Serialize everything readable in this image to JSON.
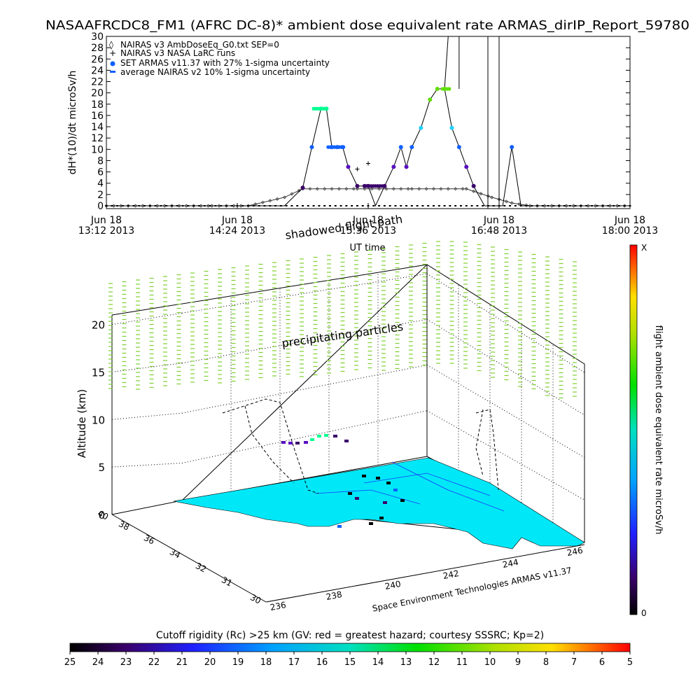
{
  "chart_data": [
    {
      "type": "line",
      "title": "NASAAFRCDC8_FM1 (AFRC DC-8)* ambient dose equivalent rate ARMAS_dirIP_Report_59780",
      "xlabel": "UT time",
      "ylabel": "dH*(10)/dt microSv/h",
      "ylim": [
        0,
        30
      ],
      "yticks": [
        "0",
        "2",
        "4",
        "6",
        "8",
        "10",
        "12",
        "14",
        "16",
        "18",
        "20",
        "22",
        "24",
        "26",
        "28",
        "30"
      ],
      "xtick_labels": [
        {
          "date": "Jun 18",
          "time": "13:12 2013"
        },
        {
          "date": "Jun 18",
          "time": "14:24 2013"
        },
        {
          "date": "Jun 18",
          "time": "15:36 2013"
        },
        {
          "date": "Jun 18",
          "time": "16:48 2013"
        },
        {
          "date": "Jun 18",
          "time": "18:00 2013"
        }
      ],
      "legend": [
        "NAIRAS v3 AmbDoseEq_G0.txt SEP=0",
        "NAIRAS v3 NASA LaRC runs",
        "SET ARMAS v11.37 with 27% 1-sigma uncertainty",
        "average NAIRAS v2 10% 1-sigma uncertainty"
      ],
      "annotations": [
        "shadowed flight path"
      ],
      "series": [
        {
          "name": "SET ARMAS v11.37 with 27% 1-sigma uncertainty",
          "x": [
            "13:12",
            "14:10",
            "14:50",
            "15:00",
            "15:05",
            "15:10",
            "15:13",
            "15:16",
            "15:19",
            "15:22",
            "15:25",
            "15:30",
            "15:34",
            "15:36",
            "15:40",
            "15:45",
            "15:50",
            "15:54",
            "15:57",
            "16:00",
            "16:05",
            "16:10",
            "16:14",
            "16:18",
            "16:22",
            "16:26",
            "16:30",
            "16:34",
            "16:40",
            "16:44",
            "16:50",
            "16:55",
            "17:00",
            "17:05",
            "17:20",
            "18:00"
          ],
          "y": [
            0,
            0,
            0,
            3.2,
            10.4,
            17.2,
            17.2,
            10.4,
            10.4,
            10.4,
            6.9,
            3.5,
            3.5,
            3.5,
            0,
            3.5,
            6.9,
            10.4,
            6.9,
            10.4,
            13.8,
            18.8,
            20.7,
            20.7,
            13.8,
            10.4,
            6.9,
            3.5,
            0,
            0,
            0,
            10.4,
            0,
            0,
            0,
            0
          ]
        },
        {
          "name": "NAIRAS v3 AmbDoseEq_G0.txt SEP=0",
          "x": [
            "13:12",
            "14:10",
            "14:30",
            "14:50",
            "15:00",
            "15:30",
            "16:00",
            "16:30",
            "16:44",
            "16:55",
            "17:05",
            "18:00"
          ],
          "y": [
            0,
            0,
            0,
            1.5,
            3,
            3,
            3,
            3,
            1.5,
            0.5,
            0,
            0
          ]
        },
        {
          "name": "NAIRAS v3 NASA LaRC runs",
          "x": [
            "15:30",
            "15:36"
          ],
          "y": [
            6.5,
            7.5
          ]
        }
      ]
    },
    {
      "type": "scatter",
      "subtype": "3d-flight-path",
      "zlabel": "Altitude (km)",
      "zticks": [
        "0",
        "5",
        "10",
        "15",
        "20"
      ],
      "lat_ticks": [
        "30",
        "31",
        "32",
        "34",
        "36",
        "38",
        "40"
      ],
      "lon_ticks": [
        "236",
        "238",
        "240",
        "242",
        "244",
        "246"
      ],
      "annotations": [
        "precipitating particles"
      ],
      "credit": "Space Environment Technologies ARMAS v11.37"
    },
    {
      "type": "heatmap",
      "subtype": "colorbar",
      "label": "flight ambient dose equivalent rate microSv/h",
      "top_label": "X",
      "bottom_label": "0"
    },
    {
      "type": "heatmap",
      "subtype": "colorbar",
      "title": "Cutoff rigidity (Rc) >25 km (GV: red = greatest hazard; courtesy SSSRC; Kp=2)",
      "ticks": [
        "25",
        "24",
        "23",
        "22",
        "21",
        "20",
        "19",
        "18",
        "17",
        "16",
        "15",
        "14",
        "13",
        "12",
        "11",
        "10",
        "9",
        "8",
        "7",
        "6",
        "5"
      ]
    }
  ]
}
